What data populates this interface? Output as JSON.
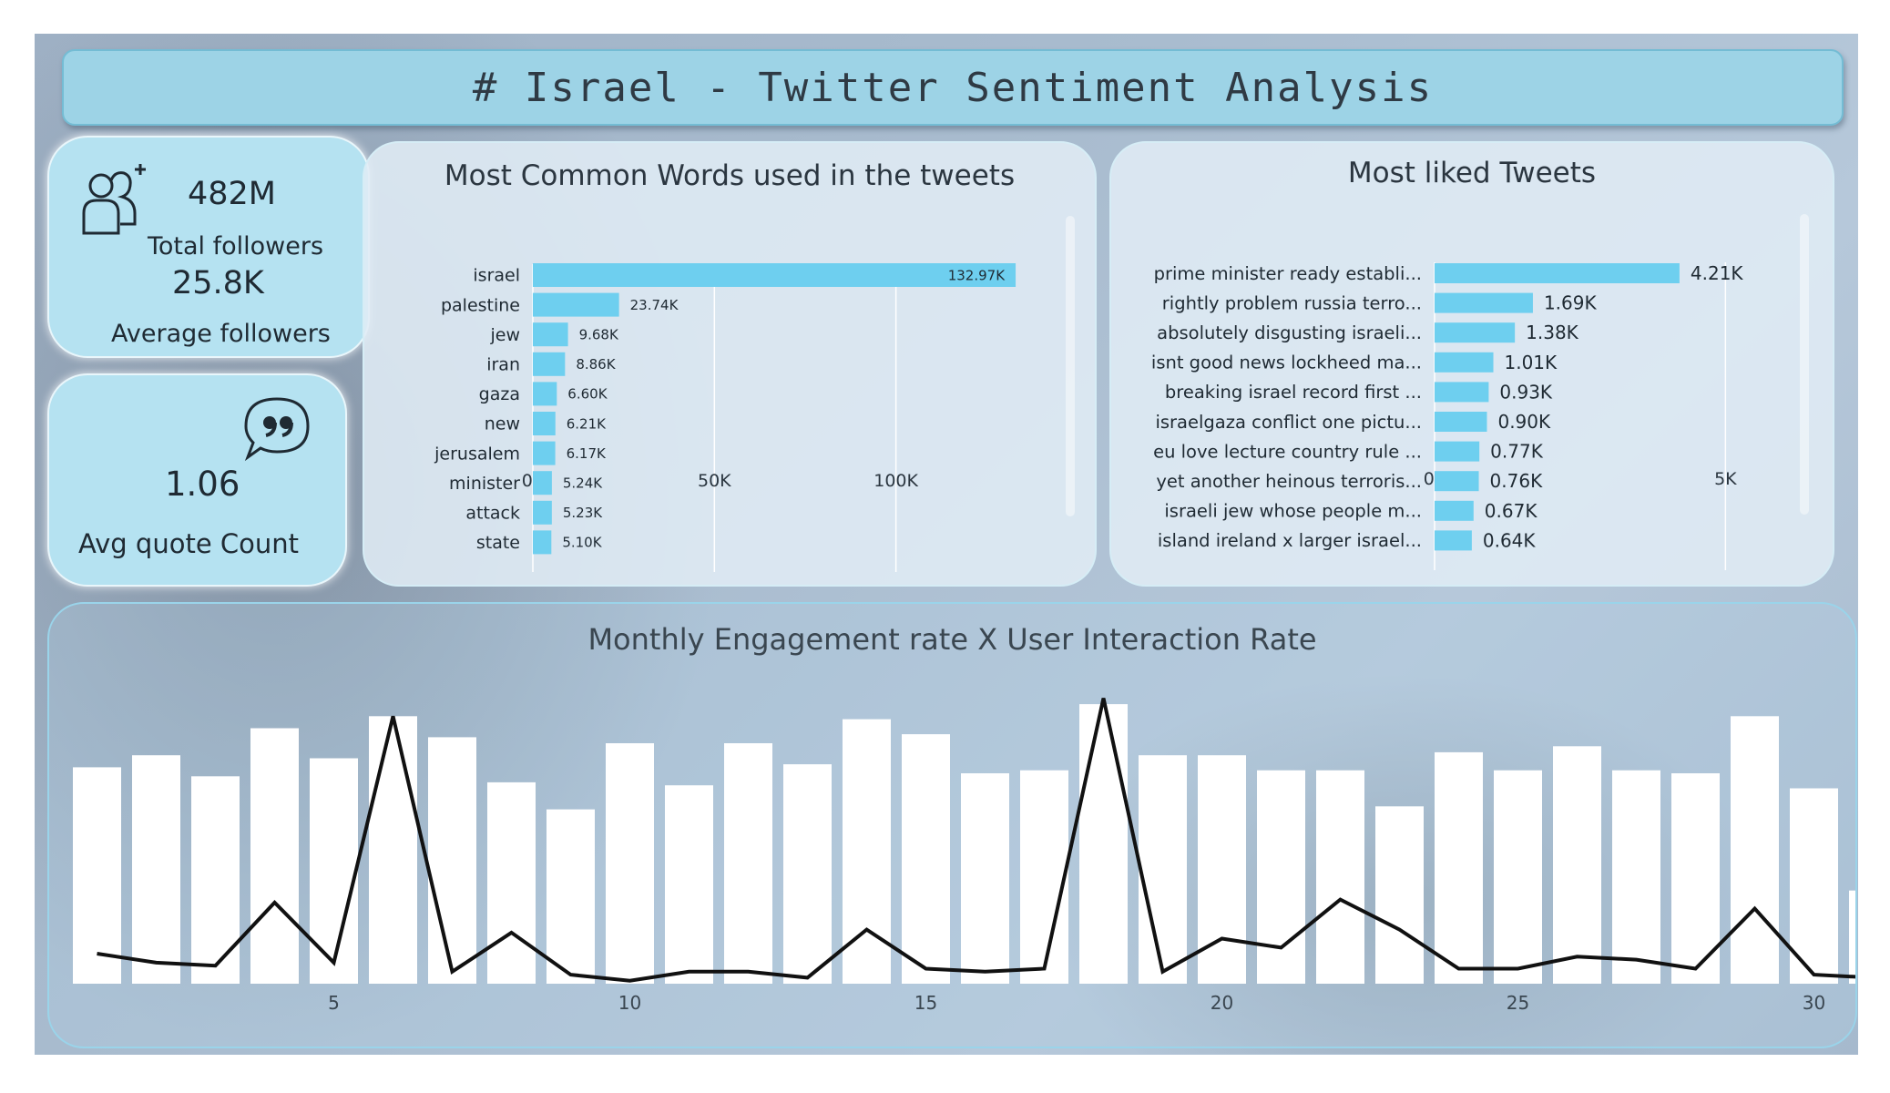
{
  "header": {
    "title": "# Israel - Twitter Sentiment Analysis"
  },
  "kpis": {
    "total_followers_value": "482M",
    "total_followers_label": "Total followers",
    "average_followers_value": "25.8K",
    "average_followers_label": "Average followers",
    "avg_quote_value": "1.06",
    "avg_quote_label": "Avg quote Count"
  },
  "icons": {
    "followers": "add-user-icon",
    "quote": "quote-bubble-icon"
  },
  "colors": {
    "bar": "#6ecfef",
    "kpi": "#b5e2f1",
    "line": "#111111",
    "column": "#ffffff"
  },
  "chart_data": [
    {
      "type": "bar",
      "orientation": "horizontal",
      "title": "Most Common Words used in the tweets",
      "categories": [
        "israel",
        "palestine",
        "jew",
        "iran",
        "gaza",
        "new",
        "jerusalem",
        "minister",
        "attack",
        "state"
      ],
      "values": [
        132970,
        23740,
        9680,
        8860,
        6600,
        6210,
        6170,
        5240,
        5230,
        5100
      ],
      "data_labels": [
        "132.97K",
        "23.74K",
        "9.68K",
        "8.86K",
        "6.60K",
        "6.21K",
        "6.17K",
        "5.24K",
        "5.23K",
        "5.10K"
      ],
      "xlim": [
        0,
        145000
      ],
      "xticks": [
        0,
        50000,
        100000
      ],
      "xtick_labels": [
        "0K",
        "50K",
        "100K"
      ],
      "grid": true
    },
    {
      "type": "bar",
      "orientation": "horizontal",
      "title": "Most liked Tweets",
      "categories": [
        "prime minister ready establi...",
        "rightly problem russia terro...",
        "absolutely disgusting israeli...",
        "isnt good news lockheed ma...",
        "breaking israel record first ...",
        "israelgaza conflict one pictu...",
        "eu love lecture country rule ...",
        "yet another heinous terroris...",
        "israeli jew whose people m...",
        "island ireland x larger israel..."
      ],
      "values": [
        4210,
        1690,
        1380,
        1010,
        930,
        900,
        770,
        760,
        670,
        640
      ],
      "data_labels": [
        "4.21K",
        "1.69K",
        "1.38K",
        "1.01K",
        "0.93K",
        "0.90K",
        "0.77K",
        "0.76K",
        "0.67K",
        "0.64K"
      ],
      "xlim": [
        0,
        6200
      ],
      "xticks": [
        0,
        5000
      ],
      "xtick_labels": [
        "0K",
        "5K"
      ],
      "grid": true
    },
    {
      "type": "bar",
      "title": "Monthly Engagement rate X User Interaction Rate",
      "x": [
        1,
        2,
        3,
        4,
        5,
        6,
        7,
        8,
        9,
        10,
        11,
        12,
        13,
        14,
        15,
        16,
        17,
        18,
        19,
        20,
        21,
        22,
        23,
        24,
        25,
        26,
        27,
        28,
        29,
        30,
        31
      ],
      "xticks": [
        5,
        10,
        15,
        20,
        25,
        30
      ],
      "series": [
        {
          "type": "bar",
          "values": [
            0.72,
            0.76,
            0.69,
            0.85,
            0.75,
            0.89,
            0.82,
            0.67,
            0.58,
            0.8,
            0.66,
            0.8,
            0.73,
            0.88,
            0.83,
            0.7,
            0.71,
            0.93,
            0.76,
            0.76,
            0.71,
            0.71,
            0.59,
            0.77,
            0.71,
            0.79,
            0.71,
            0.7,
            0.89,
            0.65,
            0.31
          ]
        },
        {
          "type": "line",
          "values": [
            0.1,
            0.07,
            0.06,
            0.27,
            0.07,
            0.89,
            0.04,
            0.17,
            0.03,
            0.01,
            0.04,
            0.04,
            0.02,
            0.18,
            0.05,
            0.04,
            0.05,
            0.95,
            0.04,
            0.15,
            0.12,
            0.28,
            0.18,
            0.05,
            0.05,
            0.09,
            0.08,
            0.05,
            0.25,
            0.03,
            0.02
          ]
        }
      ]
    }
  ]
}
